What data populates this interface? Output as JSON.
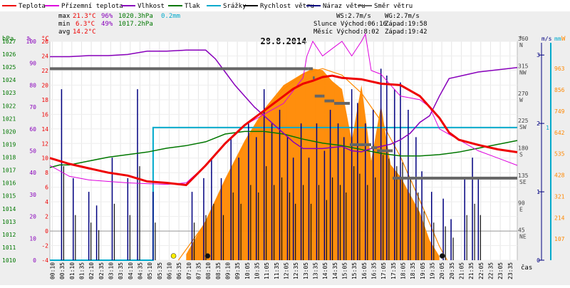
{
  "chart_data": {
    "type": "line",
    "title": "28.8.2014",
    "colors": {
      "temperature": "#ee0000",
      "apparent_temperature": "#dd00dd",
      "humidity": "#8800bb",
      "pressure": "#007700",
      "precipitation": "#00aacc",
      "wind_speed": "#111111",
      "wind_gust": "#000080",
      "wind_direction": "#666666",
      "solar": "#ff8800",
      "frame_bg": "#eeeeee"
    },
    "legend": [
      {
        "key": "temperature",
        "label": "Teplota"
      },
      {
        "key": "apparent_temperature",
        "label": "Přízemní teplota"
      },
      {
        "key": "humidity",
        "label": "Vlhkost"
      },
      {
        "key": "pressure",
        "label": "Tlak"
      },
      {
        "key": "precipitation",
        "label": "Srážky"
      },
      {
        "key": "wind_speed",
        "label": "Rychlost větru"
      },
      {
        "key": "wind_gust",
        "label": "Náraz větru"
      },
      {
        "key": "wind_direction",
        "label": "Směr větru"
      }
    ],
    "stats": {
      "max_label": "max",
      "max_temp": "21.3°C",
      "max_hum": "96%",
      "max_press": "1020.3hPa",
      "max_rain": "0.2mm",
      "min_label": "min",
      "min_temp": "6.3°C",
      "min_hum": "49%",
      "min_press": "1017.2hPa",
      "avg_label": "avg",
      "avg_temp": "14.2°C",
      "ws": "WS:2.7m/s",
      "wg": "WG:2.7m/s",
      "sun": "Slunce Východ:06:16",
      "sun_set": "Západ:19:58",
      "moon": "Měsíc Východ:8:02",
      "moon_set": "Západ:19:42"
    },
    "axis_units": {
      "pressure": "hPa",
      "humidity": "%",
      "temperature": "°C",
      "direction": "°",
      "wind": "m/s",
      "rain": "mm",
      "solar": "W",
      "time": "čas"
    },
    "pressure_ticks": [
      1010,
      1011,
      1012,
      1013,
      1014,
      1015,
      1016,
      1017,
      1018,
      1019,
      1020,
      1021,
      1022,
      1023,
      1024,
      1025,
      1026,
      1027
    ],
    "humidity_ticks": [
      0,
      10,
      20,
      30,
      40,
      50,
      60,
      70,
      80,
      90,
      100
    ],
    "temperature_ticks": [
      -4,
      -2,
      0,
      2,
      4,
      6,
      8,
      10,
      12,
      14,
      16,
      18,
      20,
      22,
      24,
      26
    ],
    "direction_ticks": [
      {
        "deg": "45",
        "dir": "NE"
      },
      {
        "deg": "90",
        "dir": "E"
      },
      {
        "deg": "135",
        "dir": "SE"
      },
      {
        "deg": "180",
        "dir": "S"
      },
      {
        "deg": "225",
        "dir": "SW"
      },
      {
        "deg": "270",
        "dir": "W"
      },
      {
        "deg": "315",
        "dir": "NW"
      },
      {
        "deg": "360",
        "dir": "N"
      }
    ],
    "wind_ticks": [
      0,
      1,
      2,
      3
    ],
    "rain_ticks": [
      1
    ],
    "solar_ticks": [
      107,
      214,
      321,
      428,
      535,
      642,
      749,
      856,
      963
    ],
    "time_ticks": [
      "00:10",
      "00:35",
      "01:10",
      "01:35",
      "02:10",
      "02:35",
      "03:10",
      "03:35",
      "04:10",
      "04:35",
      "05:10",
      "05:35",
      "06:10",
      "06:35",
      "07:10",
      "07:35",
      "08:10",
      "08:35",
      "09:10",
      "09:35",
      "10:05",
      "10:35",
      "11:05",
      "11:35",
      "12:05",
      "12:35",
      "13:05",
      "13:35",
      "14:05",
      "14:35",
      "15:05",
      "15:35",
      "16:05",
      "16:35",
      "17:05",
      "17:35",
      "18:05",
      "18:35",
      "19:05",
      "19:35",
      "20:05",
      "20:35",
      "21:05",
      "21:35",
      "22:05",
      "22:35",
      "23:05",
      "23:35"
    ],
    "xlim_hours": [
      0,
      24
    ],
    "series": {
      "temperature": {
        "x": [
          0,
          1,
          2,
          3,
          4,
          5,
          6,
          7,
          8,
          9,
          10,
          11,
          12,
          12.5,
          13,
          13.5,
          14,
          14.5,
          15,
          16,
          17,
          18,
          19,
          20,
          20.5,
          21,
          22,
          23,
          24
        ],
        "y": [
          10,
          9.2,
          8.6,
          8,
          7.6,
          6.8,
          6.6,
          6.3,
          9,
          12,
          14.5,
          16.5,
          18.5,
          19.5,
          20.2,
          20.6,
          21.1,
          21.3,
          21,
          20.8,
          20.2,
          20,
          18.5,
          15.5,
          13.5,
          12.5,
          11.8,
          11.2,
          10.8
        ]
      },
      "apparent_temperature": {
        "x": [
          0,
          1,
          2,
          3,
          4,
          5,
          6,
          7,
          8,
          9,
          10,
          11,
          12,
          13,
          13.2,
          13.5,
          14,
          14.5,
          15,
          15.5,
          16,
          16.2,
          16.5,
          17,
          17.5,
          18,
          19,
          19.5,
          20,
          21,
          22,
          23,
          24
        ],
        "y": [
          9,
          7.5,
          7,
          6.8,
          6.6,
          6.5,
          6.4,
          6.6,
          9,
          12,
          14.5,
          16,
          17.5,
          21,
          24,
          26,
          24,
          25,
          26,
          24,
          26,
          27,
          22,
          21.5,
          20,
          18.5,
          18,
          17,
          14,
          12.5,
          11,
          10,
          9
        ]
      },
      "humidity": {
        "x": [
          0,
          1,
          2,
          3,
          4,
          5,
          6,
          7,
          8,
          8.5,
          9,
          9.5,
          10,
          10.5,
          11,
          11.5,
          12,
          12.5,
          13,
          14,
          15,
          15.5,
          16,
          16.5,
          17,
          17.5,
          18,
          18.5,
          19,
          19.5,
          20,
          20.5,
          21,
          22,
          23,
          24
        ],
        "y": [
          93,
          93,
          93.5,
          93.5,
          94,
          95.5,
          95.5,
          96,
          96,
          92,
          86,
          80,
          75,
          70,
          66,
          62,
          58,
          54,
          51,
          51,
          52,
          50,
          49.5,
          51,
          52,
          53,
          55,
          58,
          63,
          66,
          75,
          83,
          84,
          86,
          87,
          88
        ]
      },
      "pressure": {
        "x": [
          0,
          0.5,
          1,
          2,
          3,
          4,
          5,
          6,
          7,
          8,
          9,
          10,
          11,
          12,
          13,
          14,
          15,
          16,
          17,
          18,
          19,
          20,
          21,
          22,
          23,
          24
        ],
        "y": [
          1017.2,
          1017.4,
          1017.4,
          1017.7,
          1018.0,
          1018.2,
          1018.4,
          1018.7,
          1018.9,
          1019.2,
          1019.8,
          1020.0,
          1020.0,
          1019.8,
          1019.4,
          1019.1,
          1018.9,
          1018.6,
          1018.3,
          1018.1,
          1018.1,
          1018.2,
          1018.4,
          1018.7,
          1019.0,
          1019.3
        ]
      },
      "precipitation": {
        "x": [
          0,
          5.3,
          5.3,
          24
        ],
        "y": [
          0,
          0,
          0.2,
          0.2
        ]
      },
      "wind_direction": {
        "x": [
          0,
          13.25,
          13.5,
          13.6,
          14.0,
          14.1,
          14.4,
          14.6,
          15.0,
          15.4,
          16.3,
          16.5,
          16.8,
          17.2,
          17.5,
          17.6,
          24
        ],
        "y": [
          315,
          315,
          300,
          270,
          270,
          262,
          262,
          258,
          258,
          190,
          190,
          185,
          180,
          180,
          180,
          135,
          135
        ]
      },
      "solar": {
        "x": [
          7,
          8,
          9,
          10,
          11,
          12,
          13,
          13.5,
          14,
          14.5,
          15,
          15.5,
          16,
          16.5,
          17,
          17.5,
          18,
          19,
          19.5,
          20
        ],
        "y": [
          30,
          200,
          410,
          600,
          760,
          880,
          940,
          963,
          956,
          900,
          860,
          600,
          880,
          500,
          780,
          480,
          420,
          240,
          100,
          20
        ]
      },
      "solar_clear": {
        "x": [
          6.6,
          8,
          9,
          10,
          11,
          12,
          13,
          14,
          15,
          16,
          17,
          18,
          19,
          20,
          20.4
        ],
        "y": [
          0,
          190,
          390,
          580,
          740,
          860,
          935,
          963,
          930,
          840,
          700,
          520,
          300,
          70,
          0
        ]
      },
      "wind_gust_spikes": [
        {
          "x": 0.6,
          "y": 2.5
        },
        {
          "x": 1.2,
          "y": 1.2
        },
        {
          "x": 2.0,
          "y": 1.0
        },
        {
          "x": 2.4,
          "y": 0.8
        },
        {
          "x": 3.2,
          "y": 1.5
        },
        {
          "x": 4.0,
          "y": 1.2
        },
        {
          "x": 4.5,
          "y": 2.5
        },
        {
          "x": 5.3,
          "y": 1.0
        },
        {
          "x": 7.3,
          "y": 1.0
        },
        {
          "x": 7.9,
          "y": 1.2
        },
        {
          "x": 8.3,
          "y": 1.5
        },
        {
          "x": 8.8,
          "y": 1.2
        },
        {
          "x": 9.3,
          "y": 1.8
        },
        {
          "x": 9.7,
          "y": 1.5
        },
        {
          "x": 10.2,
          "y": 2.0
        },
        {
          "x": 10.6,
          "y": 1.8
        },
        {
          "x": 11.0,
          "y": 2.5
        },
        {
          "x": 11.4,
          "y": 2.0
        },
        {
          "x": 11.8,
          "y": 2.2
        },
        {
          "x": 12.2,
          "y": 1.8
        },
        {
          "x": 12.5,
          "y": 1.5
        },
        {
          "x": 12.9,
          "y": 2.0
        },
        {
          "x": 13.3,
          "y": 1.5
        },
        {
          "x": 13.7,
          "y": 2.0
        },
        {
          "x": 14.1,
          "y": 1.6
        },
        {
          "x": 14.4,
          "y": 2.2
        },
        {
          "x": 14.8,
          "y": 2.0
        },
        {
          "x": 15.1,
          "y": 1.8
        },
        {
          "x": 15.5,
          "y": 2.5
        },
        {
          "x": 15.8,
          "y": 2.3
        },
        {
          "x": 16.2,
          "y": 2.0
        },
        {
          "x": 16.6,
          "y": 2.2
        },
        {
          "x": 17.0,
          "y": 2.8
        },
        {
          "x": 17.3,
          "y": 2.7
        },
        {
          "x": 17.7,
          "y": 2.5
        },
        {
          "x": 18.0,
          "y": 2.6
        },
        {
          "x": 18.4,
          "y": 2.2
        },
        {
          "x": 18.8,
          "y": 1.8
        },
        {
          "x": 19.1,
          "y": 1.3
        },
        {
          "x": 19.6,
          "y": 1.0
        },
        {
          "x": 20.2,
          "y": 0.9
        },
        {
          "x": 20.6,
          "y": 0.6
        },
        {
          "x": 21.3,
          "y": 1.2
        },
        {
          "x": 21.7,
          "y": 1.5
        },
        {
          "x": 22.0,
          "y": 1.2
        }
      ],
      "events": [
        {
          "x": 6.35,
          "color": "#ffee00"
        },
        {
          "x": 8.1,
          "color": "#111111"
        },
        {
          "x": 20.15,
          "color": "#111111"
        }
      ]
    }
  }
}
